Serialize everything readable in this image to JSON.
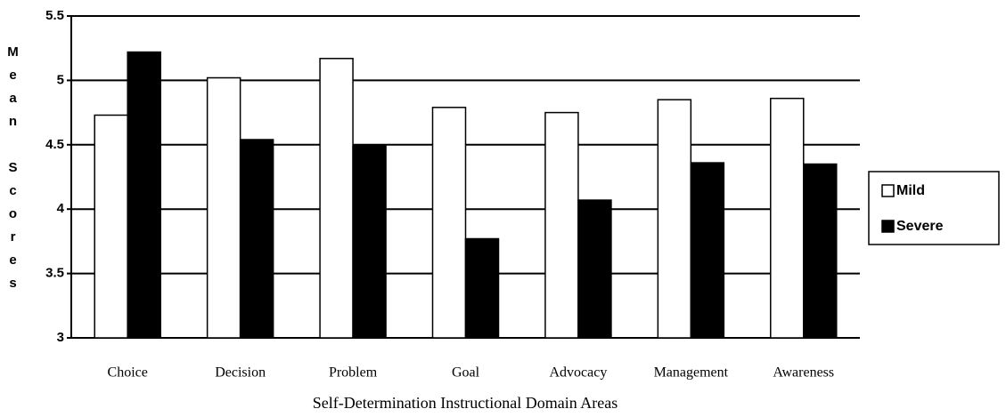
{
  "chart_data": {
    "type": "bar",
    "x_label": "Self-Determination Instructional Domain Areas",
    "y_label": "Mean Scores",
    "categories": [
      "Choice",
      "Decision",
      "Problem",
      "Goal",
      "Advocacy",
      "Management",
      "Awareness"
    ],
    "series": [
      {
        "name": "Mild",
        "color": "#ffffff",
        "values": [
          4.73,
          5.02,
          5.17,
          4.79,
          4.75,
          4.85,
          4.86
        ]
      },
      {
        "name": "Severe",
        "color": "#000000",
        "values": [
          5.22,
          4.54,
          4.49,
          3.77,
          4.07,
          4.36,
          4.35
        ]
      }
    ],
    "ylim": [
      3,
      5.5
    ],
    "yticks": [
      3,
      3.5,
      4,
      4.5,
      5,
      5.5
    ],
    "grid": true,
    "legend": "right"
  }
}
